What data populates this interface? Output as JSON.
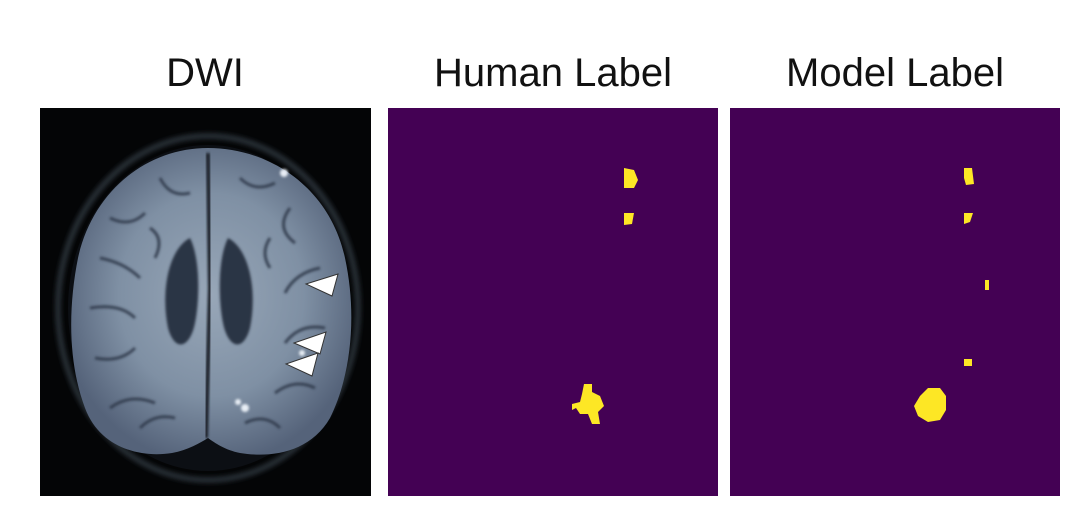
{
  "figure": {
    "panels": [
      {
        "title": "DWI"
      },
      {
        "title": "Human Label"
      },
      {
        "title": "Model Label"
      }
    ]
  },
  "colors": {
    "label_background": "#440154",
    "label_lesion": "#fde725",
    "scan_background": "#040506",
    "brain_tissue": "#7e8fa3",
    "ventricle": "#2b3444",
    "arrowhead": "#ffffff"
  }
}
